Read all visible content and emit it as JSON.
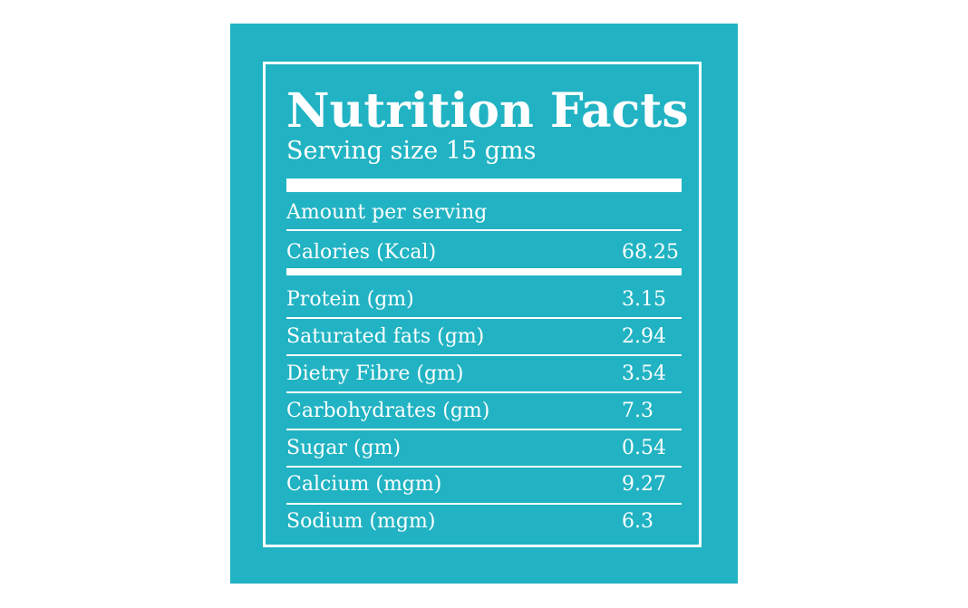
{
  "title": "Nutrition Facts",
  "serving": "Serving size 15 gms",
  "amount_label": "Amount per serving",
  "calories": {
    "label": "Calories (Kcal)",
    "value": "68.25"
  },
  "nutrients": [
    {
      "label": "Protein (gm)",
      "value": "3.15"
    },
    {
      "label": "Saturated fats (gm)",
      "value": "2.94"
    },
    {
      "label": "Dietry Fibre (gm)",
      "value": "3.54"
    },
    {
      "label": "Carbohydrates (gm)",
      "value": "7.3"
    },
    {
      "label": "Sugar (gm)",
      "value": "0.54"
    },
    {
      "label": "Calcium (mgm)",
      "value": "9.27"
    },
    {
      "label": "Sodium (mgm)",
      "value": "6.3"
    }
  ],
  "colors": {
    "panel": "#21b3c3",
    "text": "#ffffff"
  }
}
